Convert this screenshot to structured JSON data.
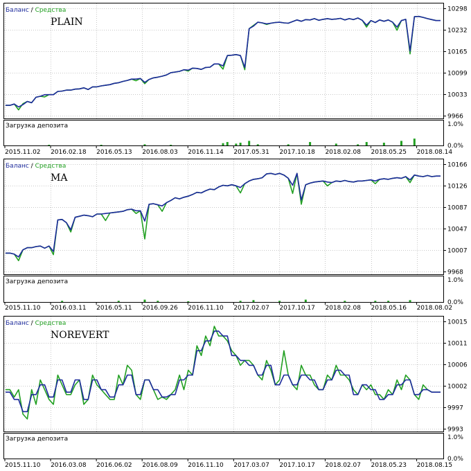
{
  "legend": {
    "balance": "Баланс",
    "separator": "/",
    "equity": "Средства"
  },
  "deposit_load_label": "Загрузка депозита",
  "colors": {
    "balance": "#1c2a9c",
    "equity": "#22a022",
    "load": "#22a022",
    "grid": "#c8c8c8"
  },
  "chart_data": [
    {
      "type": "line",
      "label": "PLAIN",
      "y_ticks": [
        "10298",
        "10232",
        "10165",
        "10099",
        "10033",
        "9966"
      ],
      "ylim": [
        9966,
        10298
      ],
      "load_ticks": [
        "1.0%",
        "0.0%"
      ],
      "x_ticks": [
        "2015.11.02",
        "2016.02.18",
        "2016.05.13",
        "2016.08.03",
        "2016.11.14",
        "2017.05.31",
        "2017.10.18",
        "2018.02.08",
        "2018.05.25",
        "2018.08.14"
      ],
      "series": [
        {
          "name": "Баланс",
          "values": [
            9998,
            9998,
            10002,
            9993,
            10000,
            10010,
            10006,
            10023,
            10026,
            10031,
            10031,
            10031,
            10041,
            10042,
            10045,
            10045,
            10048,
            10049,
            10052,
            10047,
            10055,
            10055,
            10058,
            10060,
            10062,
            10066,
            10068,
            10072,
            10075,
            10079,
            10079,
            10081,
            10069,
            10078,
            10083,
            10085,
            10088,
            10092,
            10099,
            10101,
            10103,
            10108,
            10107,
            10113,
            10112,
            10109,
            10115,
            10116,
            10126,
            10126,
            10120,
            10152,
            10153,
            10155,
            10152,
            10115,
            10235,
            10243,
            10255,
            10253,
            10250,
            10252,
            10254,
            10255,
            10253,
            10252,
            10257,
            10262,
            10258,
            10263,
            10262,
            10266,
            10261,
            10264,
            10266,
            10264,
            10265,
            10267,
            10262,
            10266,
            10263,
            10268,
            10261,
            10246,
            10260,
            10254,
            10262,
            10258,
            10262,
            10255,
            10240,
            10260,
            10264,
            10166,
            10272,
            10273,
            10270,
            10266,
            10263,
            10260,
            10260
          ]
        },
        {
          "name": "Средства",
          "values": [
            9998,
            9998,
            10002,
            9984,
            10003,
            10010,
            10006,
            10023,
            10026,
            10024,
            10031,
            10031,
            10041,
            10042,
            10045,
            10045,
            10048,
            10049,
            10052,
            10047,
            10055,
            10055,
            10058,
            10060,
            10062,
            10066,
            10068,
            10072,
            10075,
            10079,
            10074,
            10081,
            10065,
            10078,
            10083,
            10085,
            10088,
            10092,
            10099,
            10101,
            10103,
            10108,
            10104,
            10113,
            10112,
            10109,
            10115,
            10116,
            10126,
            10126,
            10110,
            10152,
            10153,
            10155,
            10152,
            10108,
            10235,
            10245,
            10255,
            10253,
            10248,
            10252,
            10254,
            10255,
            10253,
            10252,
            10257,
            10262,
            10258,
            10263,
            10262,
            10266,
            10261,
            10264,
            10266,
            10264,
            10265,
            10267,
            10262,
            10266,
            10263,
            10268,
            10261,
            10240,
            10260,
            10254,
            10262,
            10258,
            10262,
            10255,
            10230,
            10260,
            10264,
            10157,
            10272,
            10273,
            10270,
            10266,
            10263,
            10260,
            10260
          ]
        }
      ],
      "load": [
        0,
        0,
        0,
        0,
        0,
        0,
        0,
        0,
        0,
        0,
        0.02,
        0,
        0,
        0,
        0,
        0,
        0,
        0,
        0,
        0,
        0,
        0,
        0.02,
        0,
        0,
        0,
        0,
        0,
        0,
        0,
        0,
        0,
        0.05,
        0,
        0,
        0,
        0,
        0,
        0.02,
        0,
        0,
        0,
        0,
        0,
        0,
        0,
        0,
        0,
        0,
        0,
        0.1,
        0.15,
        0,
        0.08,
        0.12,
        0,
        0.2,
        0,
        0.05,
        0,
        0,
        0,
        0,
        0,
        0,
        0.05,
        0,
        0,
        0,
        0,
        0.15,
        0,
        0,
        0,
        0,
        0,
        0.08,
        0,
        0,
        0,
        0,
        0.05,
        0,
        0.15,
        0,
        0,
        0,
        0.12,
        0,
        0,
        0,
        0.2,
        0,
        0,
        0.3,
        0,
        0,
        0,
        0,
        0,
        0
      ]
    },
    {
      "type": "line",
      "label": "MA",
      "y_ticks": [
        "10166",
        "10126",
        "10087",
        "10047",
        "10007",
        "9968"
      ],
      "ylim": [
        9968,
        10166
      ],
      "load_ticks": [
        "1.0%",
        "0.0%"
      ],
      "x_ticks": [
        "2015.11.10",
        "2016.03.11",
        "2016.05.11",
        "2016.09.26",
        "2016.11.10",
        "2017.02.07",
        "2017.10.17",
        "2018.02.08",
        "2018.05.16",
        "2018.08.02"
      ],
      "series": [
        {
          "name": "Баланс",
          "values": [
            10002,
            10002,
            10000,
            9995,
            10008,
            10012,
            10012,
            10014,
            10015,
            10011,
            10015,
            10005,
            10063,
            10064,
            10058,
            10045,
            10068,
            10070,
            10072,
            10071,
            10069,
            10074,
            10074,
            10075,
            10076,
            10077,
            10078,
            10079,
            10082,
            10083,
            10080,
            10080,
            10061,
            10092,
            10093,
            10091,
            10089,
            10095,
            10099,
            10104,
            10102,
            10105,
            10107,
            10110,
            10114,
            10113,
            10117,
            10120,
            10119,
            10124,
            10127,
            10126,
            10128,
            10126,
            10123,
            10130,
            10135,
            10138,
            10139,
            10141,
            10148,
            10149,
            10147,
            10149,
            10146,
            10140,
            10127,
            10149,
            10100,
            10128,
            10131,
            10133,
            10134,
            10135,
            10133,
            10132,
            10135,
            10134,
            10136,
            10134,
            10133,
            10135,
            10135,
            10136,
            10137,
            10135,
            10138,
            10139,
            10138,
            10140,
            10141,
            10140,
            10143,
            10137,
            10146,
            10144,
            10143,
            10145,
            10143,
            10144,
            10144
          ]
        },
        {
          "name": "Средства",
          "values": [
            10002,
            10002,
            10000,
            9988,
            10008,
            10012,
            10012,
            10014,
            10015,
            10011,
            10015,
            9999,
            10063,
            10064,
            10058,
            10041,
            10068,
            10070,
            10072,
            10071,
            10069,
            10074,
            10074,
            10062,
            10076,
            10077,
            10078,
            10079,
            10082,
            10083,
            10075,
            10080,
            10028,
            10092,
            10093,
            10091,
            10079,
            10095,
            10099,
            10104,
            10102,
            10105,
            10107,
            10110,
            10114,
            10113,
            10117,
            10120,
            10119,
            10124,
            10127,
            10126,
            10128,
            10126,
            10113,
            10130,
            10135,
            10138,
            10139,
            10141,
            10148,
            10149,
            10147,
            10149,
            10146,
            10140,
            10112,
            10149,
            10092,
            10128,
            10131,
            10133,
            10134,
            10135,
            10126,
            10132,
            10135,
            10134,
            10136,
            10134,
            10133,
            10135,
            10135,
            10136,
            10137,
            10130,
            10138,
            10139,
            10138,
            10140,
            10141,
            10140,
            10143,
            10132,
            10146,
            10144,
            10143,
            10145,
            10143,
            10144,
            10144
          ]
        }
      ],
      "load": [
        0,
        0,
        0,
        0,
        0,
        0,
        0,
        0,
        0,
        0,
        0,
        0,
        0,
        0.05,
        0,
        0,
        0,
        0,
        0,
        0,
        0,
        0,
        0,
        0,
        0,
        0,
        0.05,
        0,
        0,
        0,
        0,
        0,
        0.1,
        0,
        0,
        0.05,
        0,
        0,
        0,
        0,
        0,
        0,
        0.03,
        0,
        0,
        0,
        0,
        0,
        0,
        0,
        0,
        0,
        0,
        0,
        0.05,
        0,
        0,
        0.08,
        0,
        0,
        0,
        0,
        0,
        0.05,
        0,
        0,
        0,
        0,
        0,
        0.1,
        0,
        0,
        0,
        0,
        0,
        0,
        0,
        0,
        0.05,
        0,
        0,
        0,
        0,
        0,
        0,
        0.05,
        0,
        0,
        0.05,
        0,
        0,
        0,
        0,
        0.08,
        0,
        0,
        0,
        0,
        0,
        0,
        0
      ]
    },
    {
      "type": "line",
      "label": "NOREVERT",
      "y_ticks": [
        "10015",
        "10011",
        "10006",
        "10002",
        "9997",
        "9993"
      ],
      "ylim": [
        9993,
        10015
      ],
      "load_ticks": [
        "1.0%",
        "0.0%"
      ],
      "x_ticks": [
        "2015.11.10",
        "2016.03.08",
        "2016.06.02",
        "2016.08.09",
        "2016.11.10",
        "2017.03.07",
        "2017.10.17",
        "2018.02.07",
        "2018.05.23",
        "2018.08.15"
      ],
      "series": [
        {
          "name": "Баланс",
          "values": [
            10000.5,
            10000.5,
            9999,
            9999,
            9996.5,
            9996.5,
            10000,
            10000,
            10002,
            10002,
            9999.5,
            9999.5,
            10003,
            10003,
            10000.5,
            10000.5,
            10003,
            10003,
            9999,
            9999,
            10003,
            10003,
            10001,
            10001,
            9999.5,
            9999.5,
            10002,
            10002,
            10004,
            10004,
            10000,
            10000,
            10003,
            10003,
            10001,
            10001,
            9999.5,
            9999.5,
            10000,
            10000,
            10003,
            10003,
            10004,
            10004,
            10009,
            10009,
            10011,
            10011,
            10013,
            10013,
            10012,
            10012,
            10008,
            10008,
            10007,
            10007,
            10006,
            10006,
            10004,
            10004,
            10006,
            10006,
            10002,
            10002,
            10004,
            10004,
            10002,
            10002,
            10004,
            10004,
            10003,
            10003,
            10001,
            10001,
            10003,
            10003,
            10005,
            10005,
            10004,
            10004,
            10000,
            10000,
            10002,
            10002,
            10001,
            10001,
            9999,
            9999,
            10000,
            10000,
            10002,
            10002,
            10003,
            10003,
            10000,
            10000,
            10001,
            10001,
            10000.5,
            10000.5,
            10000.5
          ]
        },
        {
          "name": "Средства",
          "values": [
            10001,
            10001,
            9999.5,
            10001,
            9996,
            9995,
            10001,
            9998,
            10003,
            10001,
            9999,
            9998,
            10004,
            10002,
            10000,
            10000,
            10002,
            10003,
            9998,
            9999,
            10004,
            10002,
            10001,
            10000,
            9999,
            9999,
            10004,
            10002,
            10006,
            10005,
            10000,
            9999,
            10003,
            10003,
            10001,
            9999,
            9999.5,
            9999,
            10000,
            10001,
            10004,
            10001,
            10005,
            10004,
            10010,
            10008,
            10012,
            10010,
            10014,
            10012,
            10012,
            10011,
            10009,
            10008,
            10006,
            10007,
            10007,
            10006,
            10004,
            10003,
            10007,
            10005,
            10002,
            10003,
            10009,
            10004,
            10002,
            10001,
            10006,
            10004,
            10004,
            10002,
            10001,
            10001,
            10004,
            10003,
            10006,
            10004,
            10004,
            10003,
            10001,
            10000,
            10002,
            10001,
            10002,
            10000,
            10000,
            9999,
            10001,
            10000,
            10003,
            10001,
            10004,
            10003,
            10000,
            9999,
            10002,
            10001,
            10000.5,
            10000.5,
            10000.5
          ]
        }
      ],
      "load": []
    }
  ]
}
